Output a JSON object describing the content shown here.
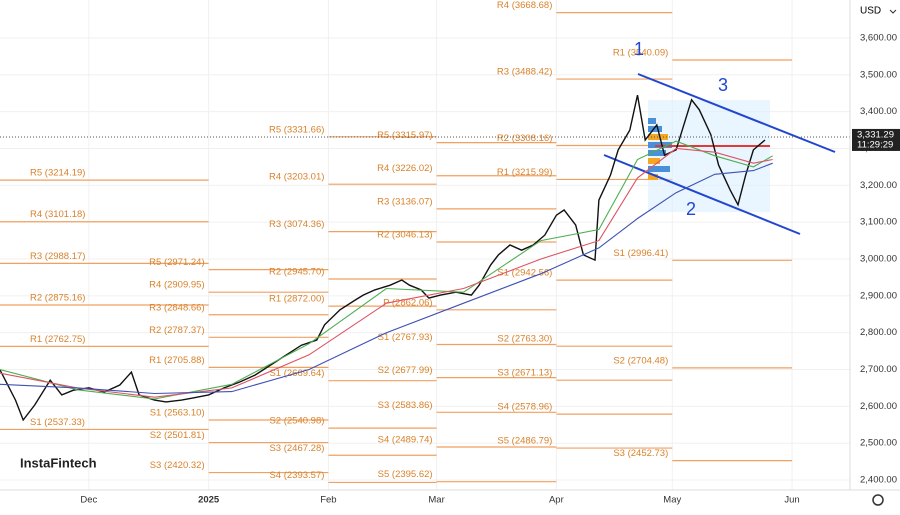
{
  "chart_data": {
    "type": "line",
    "currency": "USD",
    "ylim": [
      2373,
      3703
    ],
    "yticks": [
      {
        "value": 2400,
        "label": "2,400.00"
      },
      {
        "value": 2500,
        "label": "2,500.00"
      },
      {
        "value": 2600,
        "label": "2,600.00"
      },
      {
        "value": 2700,
        "label": "2,700.00"
      },
      {
        "value": 2800,
        "label": "2,800.00"
      },
      {
        "value": 2900,
        "label": "2,900.00"
      },
      {
        "value": 3000,
        "label": "3,000.00"
      },
      {
        "value": 3100,
        "label": "3,100.00"
      },
      {
        "value": 3200,
        "label": "3,200.00"
      },
      {
        "value": 3300,
        "label": "3,300.00"
      },
      {
        "value": 3400,
        "label": "3,400.00"
      },
      {
        "value": 3500,
        "label": "3,500.00"
      },
      {
        "value": 3600,
        "label": "3,600.00"
      }
    ],
    "xlim": [
      0,
      220
    ],
    "xticks": [
      {
        "value": 23,
        "label": "Dec"
      },
      {
        "value": 54,
        "label": "2025"
      },
      {
        "value": 85,
        "label": "Feb"
      },
      {
        "value": 113,
        "label": "Mar"
      },
      {
        "value": 144,
        "label": "Apr"
      },
      {
        "value": 174,
        "label": "May"
      },
      {
        "value": 205,
        "label": "Jun"
      }
    ],
    "grid": true,
    "last_price": {
      "value": 3331.29,
      "label": "3,331.29"
    },
    "countdown": "11:29:29",
    "annotations": [
      "1",
      "2",
      "3"
    ],
    "brand": "InstaFintech",
    "series": [
      {
        "color": "#111111",
        "x": [
          0,
          4,
          6,
          9,
          13,
          16,
          19,
          23,
          27,
          31,
          34,
          36,
          40,
          43,
          47,
          50,
          54,
          58,
          62,
          66,
          70,
          74,
          78,
          82,
          84,
          88,
          92,
          94,
          97,
          101,
          104,
          106,
          109,
          111,
          114,
          118,
          122,
          124,
          127,
          129,
          132,
          135,
          138,
          141,
          144,
          146,
          149,
          151,
          154,
          155,
          158,
          160,
          163,
          165,
          167,
          170,
          172,
          175,
          179,
          181,
          184,
          186,
          189,
          191,
          193,
          195,
          198
        ],
        "values": [
          2699,
          2617,
          2563,
          2604,
          2671,
          2631,
          2644,
          2650,
          2639,
          2658,
          2693,
          2631,
          2617,
          2612,
          2617,
          2623,
          2631,
          2650,
          2666,
          2685,
          2712,
          2739,
          2766,
          2780,
          2821,
          2862,
          2889,
          2902,
          2916,
          2929,
          2943,
          2929,
          2916,
          2894,
          2902,
          2910,
          2902,
          2929,
          2984,
          3011,
          3038,
          3024,
          3038,
          3065,
          3119,
          3133,
          3092,
          3011,
          2997,
          3160,
          3228,
          3296,
          3350,
          3445,
          3323,
          3364,
          3282,
          3296,
          3432,
          3405,
          3337,
          3255,
          3187,
          3147,
          3228,
          3296,
          3323
        ]
      },
      {
        "color": "#4caf50",
        "x": [
          0,
          20,
          40,
          60,
          80,
          100,
          120,
          140,
          155,
          165,
          175,
          185,
          195,
          200
        ],
        "values": [
          2700,
          2645,
          2620,
          2660,
          2770,
          2920,
          2910,
          3050,
          3080,
          3270,
          3320,
          3280,
          3250,
          3280
        ]
      },
      {
        "color": "#e05263",
        "x": [
          0,
          20,
          40,
          60,
          80,
          100,
          120,
          140,
          155,
          165,
          175,
          185,
          195,
          200
        ],
        "values": [
          2690,
          2650,
          2625,
          2650,
          2740,
          2880,
          2920,
          3000,
          3050,
          3220,
          3300,
          3290,
          3260,
          3270
        ]
      },
      {
        "color": "#3f51b5",
        "x": [
          0,
          20,
          40,
          60,
          80,
          100,
          120,
          140,
          155,
          165,
          175,
          185,
          195,
          200
        ],
        "values": [
          2660,
          2650,
          2635,
          2640,
          2700,
          2800,
          2880,
          2960,
          3030,
          3110,
          3180,
          3230,
          3240,
          3260
        ]
      }
    ],
    "pivots": [
      {
        "x": [
          0,
          54
        ],
        "levels": [
          {
            "value": 3214.19,
            "label": "R5 (3214.19)"
          },
          {
            "value": 3101.18,
            "label": "R4 (3101.18)"
          },
          {
            "value": 2988.17,
            "label": "R3 (2988.17)"
          },
          {
            "value": 2875.16,
            "label": "R2 (2875.16)"
          },
          {
            "value": 2762.75,
            "label": "R1 (2762.75)"
          },
          {
            "value": 2537.33,
            "label": "S1 (2537.33)"
          }
        ]
      },
      {
        "x": [
          54,
          85
        ],
        "levels": [
          {
            "value": 2971.24,
            "label": "R5 (2971.24)"
          },
          {
            "value": 2909.95,
            "label": "R4 (2909.95)"
          },
          {
            "value": 2848.66,
            "label": "R3 (2848.66)"
          },
          {
            "value": 2787.37,
            "label": "R2 (2787.37)"
          },
          {
            "value": 2705.88,
            "label": "R1 (2705.88)"
          },
          {
            "value": 2563.1,
            "label": "S1 (2563.10)"
          },
          {
            "value": 2501.81,
            "label": "S2 (2501.81)"
          },
          {
            "value": 2420.32,
            "label": "S3 (2420.32)"
          }
        ]
      },
      {
        "x": [
          85,
          113
        ],
        "levels": [
          {
            "value": 3331.66,
            "label": "R5 (3331.66)"
          },
          {
            "value": 3203.01,
            "label": "R4 (3203.01)"
          },
          {
            "value": 3074.36,
            "label": "R3 (3074.36)"
          },
          {
            "value": 2945.7,
            "label": "R2 (2945.70)"
          },
          {
            "value": 2872.0,
            "label": "R1 (2872.00)"
          },
          {
            "value": 2669.64,
            "label": "S1 (2669.64)"
          },
          {
            "value": 2540.98,
            "label": "S2 (2540.98)"
          },
          {
            "value": 2467.28,
            "label": "S3 (2467.28)"
          },
          {
            "value": 2393.57,
            "label": "S4 (2393.57)"
          }
        ]
      },
      {
        "x": [
          113,
          144
        ],
        "levels": [
          {
            "value": 3315.97,
            "label": "R5 (3315.97)"
          },
          {
            "value": 3226.02,
            "label": "R4 (3226.02)"
          },
          {
            "value": 3136.07,
            "label": "R3 (3136.07)"
          },
          {
            "value": 3046.13,
            "label": "R2 (3046.13)"
          },
          {
            "value": 2862.06,
            "label": "P (2862.06)"
          },
          {
            "value": 2767.93,
            "label": "S1 (2767.93)"
          },
          {
            "value": 2677.99,
            "label": "S2 (2677.99)"
          },
          {
            "value": 2583.86,
            "label": "S3 (2583.86)"
          },
          {
            "value": 2489.74,
            "label": "S4 (2489.74)"
          },
          {
            "value": 2395.62,
            "label": "S5 (2395.62)"
          }
        ]
      },
      {
        "x": [
          144,
          174
        ],
        "levels": [
          {
            "value": 3668.68,
            "label": "R4 (3668.68)"
          },
          {
            "value": 3488.42,
            "label": "R3 (3488.42)"
          },
          {
            "value": 3308.16,
            "label": "R2 (3308.16)"
          },
          {
            "value": 3215.99,
            "label": "R1 (3215.99)"
          },
          {
            "value": 2942.56,
            "label": "S1 (2942.56)"
          },
          {
            "value": 2763.3,
            "label": "S2 (2763.30)"
          },
          {
            "value": 2671.13,
            "label": "S3 (2671.13)"
          },
          {
            "value": 2578.96,
            "label": "S4 (2578.96)"
          },
          {
            "value": 2486.79,
            "label": "S5 (2486.79)"
          }
        ]
      },
      {
        "x": [
          174,
          205
        ],
        "levels": [
          {
            "value": 3540.09,
            "label": "R1 (3540.09)"
          },
          {
            "value": 2996.41,
            "label": "S1 (2996.41)"
          },
          {
            "value": 2704.48,
            "label": "S2 (2704.48)"
          },
          {
            "value": 2452.73,
            "label": "S3 (2452.73)"
          }
        ]
      }
    ]
  }
}
